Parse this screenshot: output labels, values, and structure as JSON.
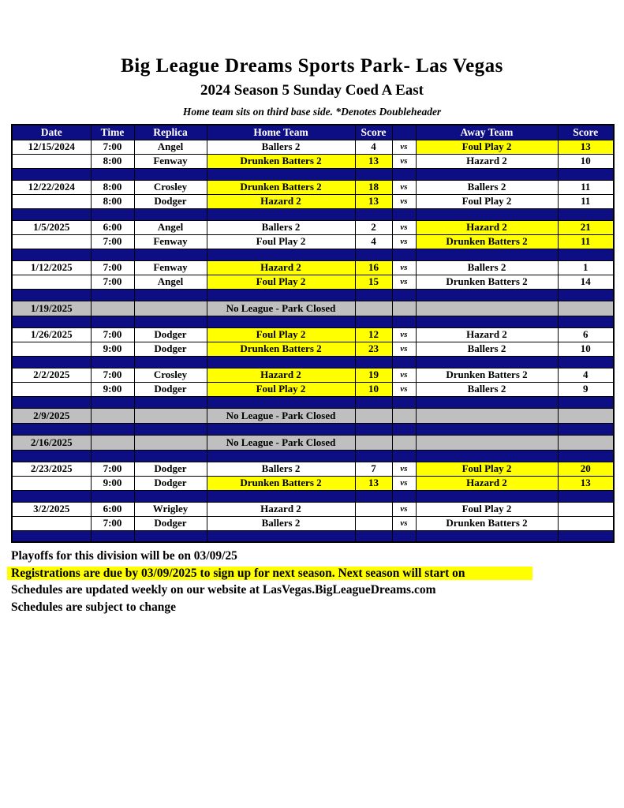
{
  "header": {
    "title": "Big League Dreams Sports Park- Las Vegas",
    "subtitle": "2024 Season 5 Sunday Coed A East",
    "note": "Home team sits on third base side.  *Denotes Doubleheader"
  },
  "colors": {
    "navy": "#0d0d84",
    "highlight_yellow": "#ffff00",
    "closed_gray": "#bfbfbf"
  },
  "table": {
    "columns": [
      "Date",
      "Time",
      "Replica",
      "Home Team",
      "Score",
      "",
      "Away Team",
      "Score"
    ],
    "vs_label": "vs",
    "closed_label": "No League - Park Closed",
    "rows": [
      {
        "type": "game",
        "date": "12/15/2024",
        "time": "7:00",
        "replica": "Angel",
        "home_team": "Ballers 2",
        "home_score": "4",
        "away_team": "Foul Play 2",
        "away_score": "13",
        "home_highlight": false,
        "away_highlight": true
      },
      {
        "type": "game",
        "date": "",
        "time": "8:00",
        "replica": "Fenway",
        "home_team": "Drunken Batters 2",
        "home_score": "13",
        "away_team": "Hazard 2",
        "away_score": "10",
        "home_highlight": true,
        "away_highlight": false
      },
      {
        "type": "separator"
      },
      {
        "type": "game",
        "date": "12/22/2024",
        "time": "8:00",
        "replica": "Crosley",
        "home_team": "Drunken Batters 2",
        "home_score": "18",
        "away_team": "Ballers 2",
        "away_score": "11",
        "home_highlight": true,
        "away_highlight": false
      },
      {
        "type": "game",
        "date": "",
        "time": "8:00",
        "replica": "Dodger",
        "home_team": "Hazard 2",
        "home_score": "13",
        "away_team": "Foul Play 2",
        "away_score": "11",
        "home_highlight": true,
        "away_highlight": false
      },
      {
        "type": "separator"
      },
      {
        "type": "game",
        "date": "1/5/2025",
        "time": "6:00",
        "replica": "Angel",
        "home_team": "Ballers 2",
        "home_score": "2",
        "away_team": "Hazard 2",
        "away_score": "21",
        "home_highlight": false,
        "away_highlight": true
      },
      {
        "type": "game",
        "date": "",
        "time": "7:00",
        "replica": "Fenway",
        "home_team": "Foul Play 2",
        "home_score": "4",
        "away_team": "Drunken Batters 2",
        "away_score": "11",
        "home_highlight": false,
        "away_highlight": true
      },
      {
        "type": "separator"
      },
      {
        "type": "game",
        "date": "1/12/2025",
        "time": "7:00",
        "replica": "Fenway",
        "home_team": "Hazard 2",
        "home_score": "16",
        "away_team": "Ballers 2",
        "away_score": "1",
        "home_highlight": true,
        "away_highlight": false
      },
      {
        "type": "game",
        "date": "",
        "time": "7:00",
        "replica": "Angel",
        "home_team": "Foul Play 2",
        "home_score": "15",
        "away_team": "Drunken Batters 2",
        "away_score": "14",
        "home_highlight": true,
        "away_highlight": false
      },
      {
        "type": "separator"
      },
      {
        "type": "closed",
        "date": "1/19/2025"
      },
      {
        "type": "separator"
      },
      {
        "type": "game",
        "date": "1/26/2025",
        "time": "7:00",
        "replica": "Dodger",
        "home_team": "Foul Play 2",
        "home_score": "12",
        "away_team": "Hazard 2",
        "away_score": "6",
        "home_highlight": true,
        "away_highlight": false
      },
      {
        "type": "game",
        "date": "",
        "time": "9:00",
        "replica": "Dodger",
        "home_team": "Drunken Batters 2",
        "home_score": "23",
        "away_team": "Ballers 2",
        "away_score": "10",
        "home_highlight": true,
        "away_highlight": false
      },
      {
        "type": "separator"
      },
      {
        "type": "game",
        "date": "2/2/2025",
        "time": "7:00",
        "replica": "Crosley",
        "home_team": "Hazard 2",
        "home_score": "19",
        "away_team": "Drunken Batters 2",
        "away_score": "4",
        "home_highlight": true,
        "away_highlight": false
      },
      {
        "type": "game",
        "date": "",
        "time": "9:00",
        "replica": "Dodger",
        "home_team": "Foul Play 2",
        "home_score": "10",
        "away_team": "Ballers 2",
        "away_score": "9",
        "home_highlight": true,
        "away_highlight": false
      },
      {
        "type": "separator"
      },
      {
        "type": "closed",
        "date": "2/9/2025"
      },
      {
        "type": "separator"
      },
      {
        "type": "closed",
        "date": "2/16/2025"
      },
      {
        "type": "separator"
      },
      {
        "type": "game",
        "date": "2/23/2025",
        "time": "7:00",
        "replica": "Dodger",
        "home_team": "Ballers 2",
        "home_score": "7",
        "away_team": "Foul Play 2",
        "away_score": "20",
        "home_highlight": false,
        "away_highlight": true
      },
      {
        "type": "game",
        "date": "",
        "time": "9:00",
        "replica": "Dodger",
        "home_team": "Drunken Batters 2",
        "home_score": "13",
        "away_team": "Hazard 2",
        "away_score": "13",
        "home_highlight": true,
        "away_highlight": true
      },
      {
        "type": "separator"
      },
      {
        "type": "game",
        "date": "3/2/2025",
        "time": "6:00",
        "replica": "Wrigley",
        "home_team": "Hazard 2",
        "home_score": "",
        "away_team": "Foul Play 2",
        "away_score": "",
        "home_highlight": false,
        "away_highlight": false
      },
      {
        "type": "game",
        "date": "",
        "time": "7:00",
        "replica": "Dodger",
        "home_team": "Ballers 2",
        "home_score": "",
        "away_team": "Drunken Batters 2",
        "away_score": "",
        "home_highlight": false,
        "away_highlight": false
      },
      {
        "type": "separator"
      }
    ]
  },
  "footer": {
    "playoffs": "Playoffs for this division will be on 03/09/25",
    "registration": "Registrations are due by 03/09/2025 to sign up for next season. Next season will start on",
    "website": "Schedules are updated weekly on our website at LasVegas.BigLeagueDreams.com",
    "subject_to_change": "Schedules are subject to change"
  }
}
